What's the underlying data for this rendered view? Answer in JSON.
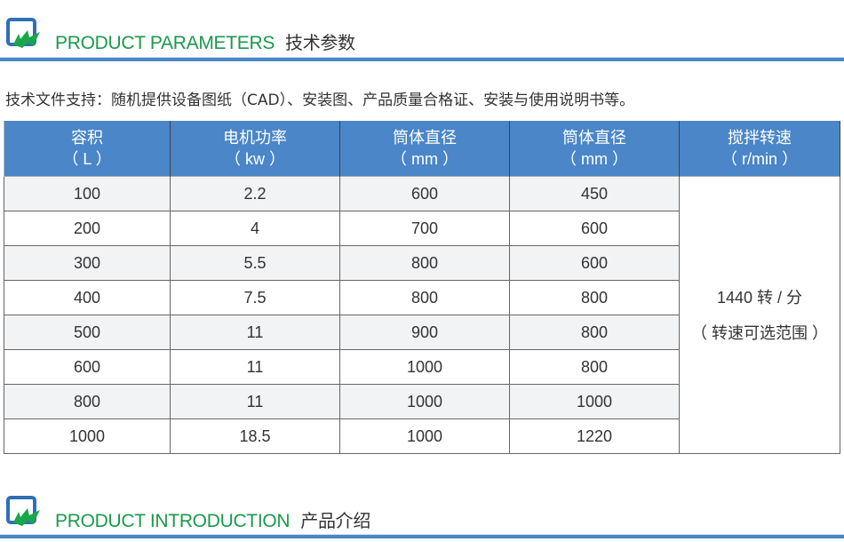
{
  "sections": [
    {
      "title_en": "PRODUCT PARAMETERS",
      "title_cn": "技术参数"
    },
    {
      "title_en": "PRODUCT INTRODUCTION",
      "title_cn": "产品介绍"
    }
  ],
  "intro_text": "技术文件支持：随机提供设备图纸（CAD）、安装图、产品质量合格证、安装与使用说明书等。",
  "colors": {
    "accent_blue": "#4a86c8",
    "title_green": "#1a9a4a"
  },
  "table": {
    "headers": [
      {
        "name": "容积",
        "unit": "（ L ）"
      },
      {
        "name": "电机功率",
        "unit": "（ kw ）"
      },
      {
        "name": "筒体直径",
        "unit": "（ mm ）"
      },
      {
        "name": "筒体直径",
        "unit": "（ mm ）"
      },
      {
        "name": "搅拌转速",
        "unit": "（ r/min ）"
      }
    ],
    "rows": [
      [
        "100",
        "2.2",
        "600",
        "450"
      ],
      [
        "200",
        "4",
        "700",
        "600"
      ],
      [
        "300",
        "5.5",
        "800",
        "600"
      ],
      [
        "400",
        "7.5",
        "800",
        "800"
      ],
      [
        "500",
        "11",
        "900",
        "800"
      ],
      [
        "600",
        "11",
        "1000",
        "800"
      ],
      [
        "800",
        "11",
        "1000",
        "1000"
      ],
      [
        "1000",
        "18.5",
        "1000",
        "1220"
      ]
    ],
    "speed_line1": "1440 转 / 分",
    "speed_line2": "（ 转速可选范围 ）"
  }
}
